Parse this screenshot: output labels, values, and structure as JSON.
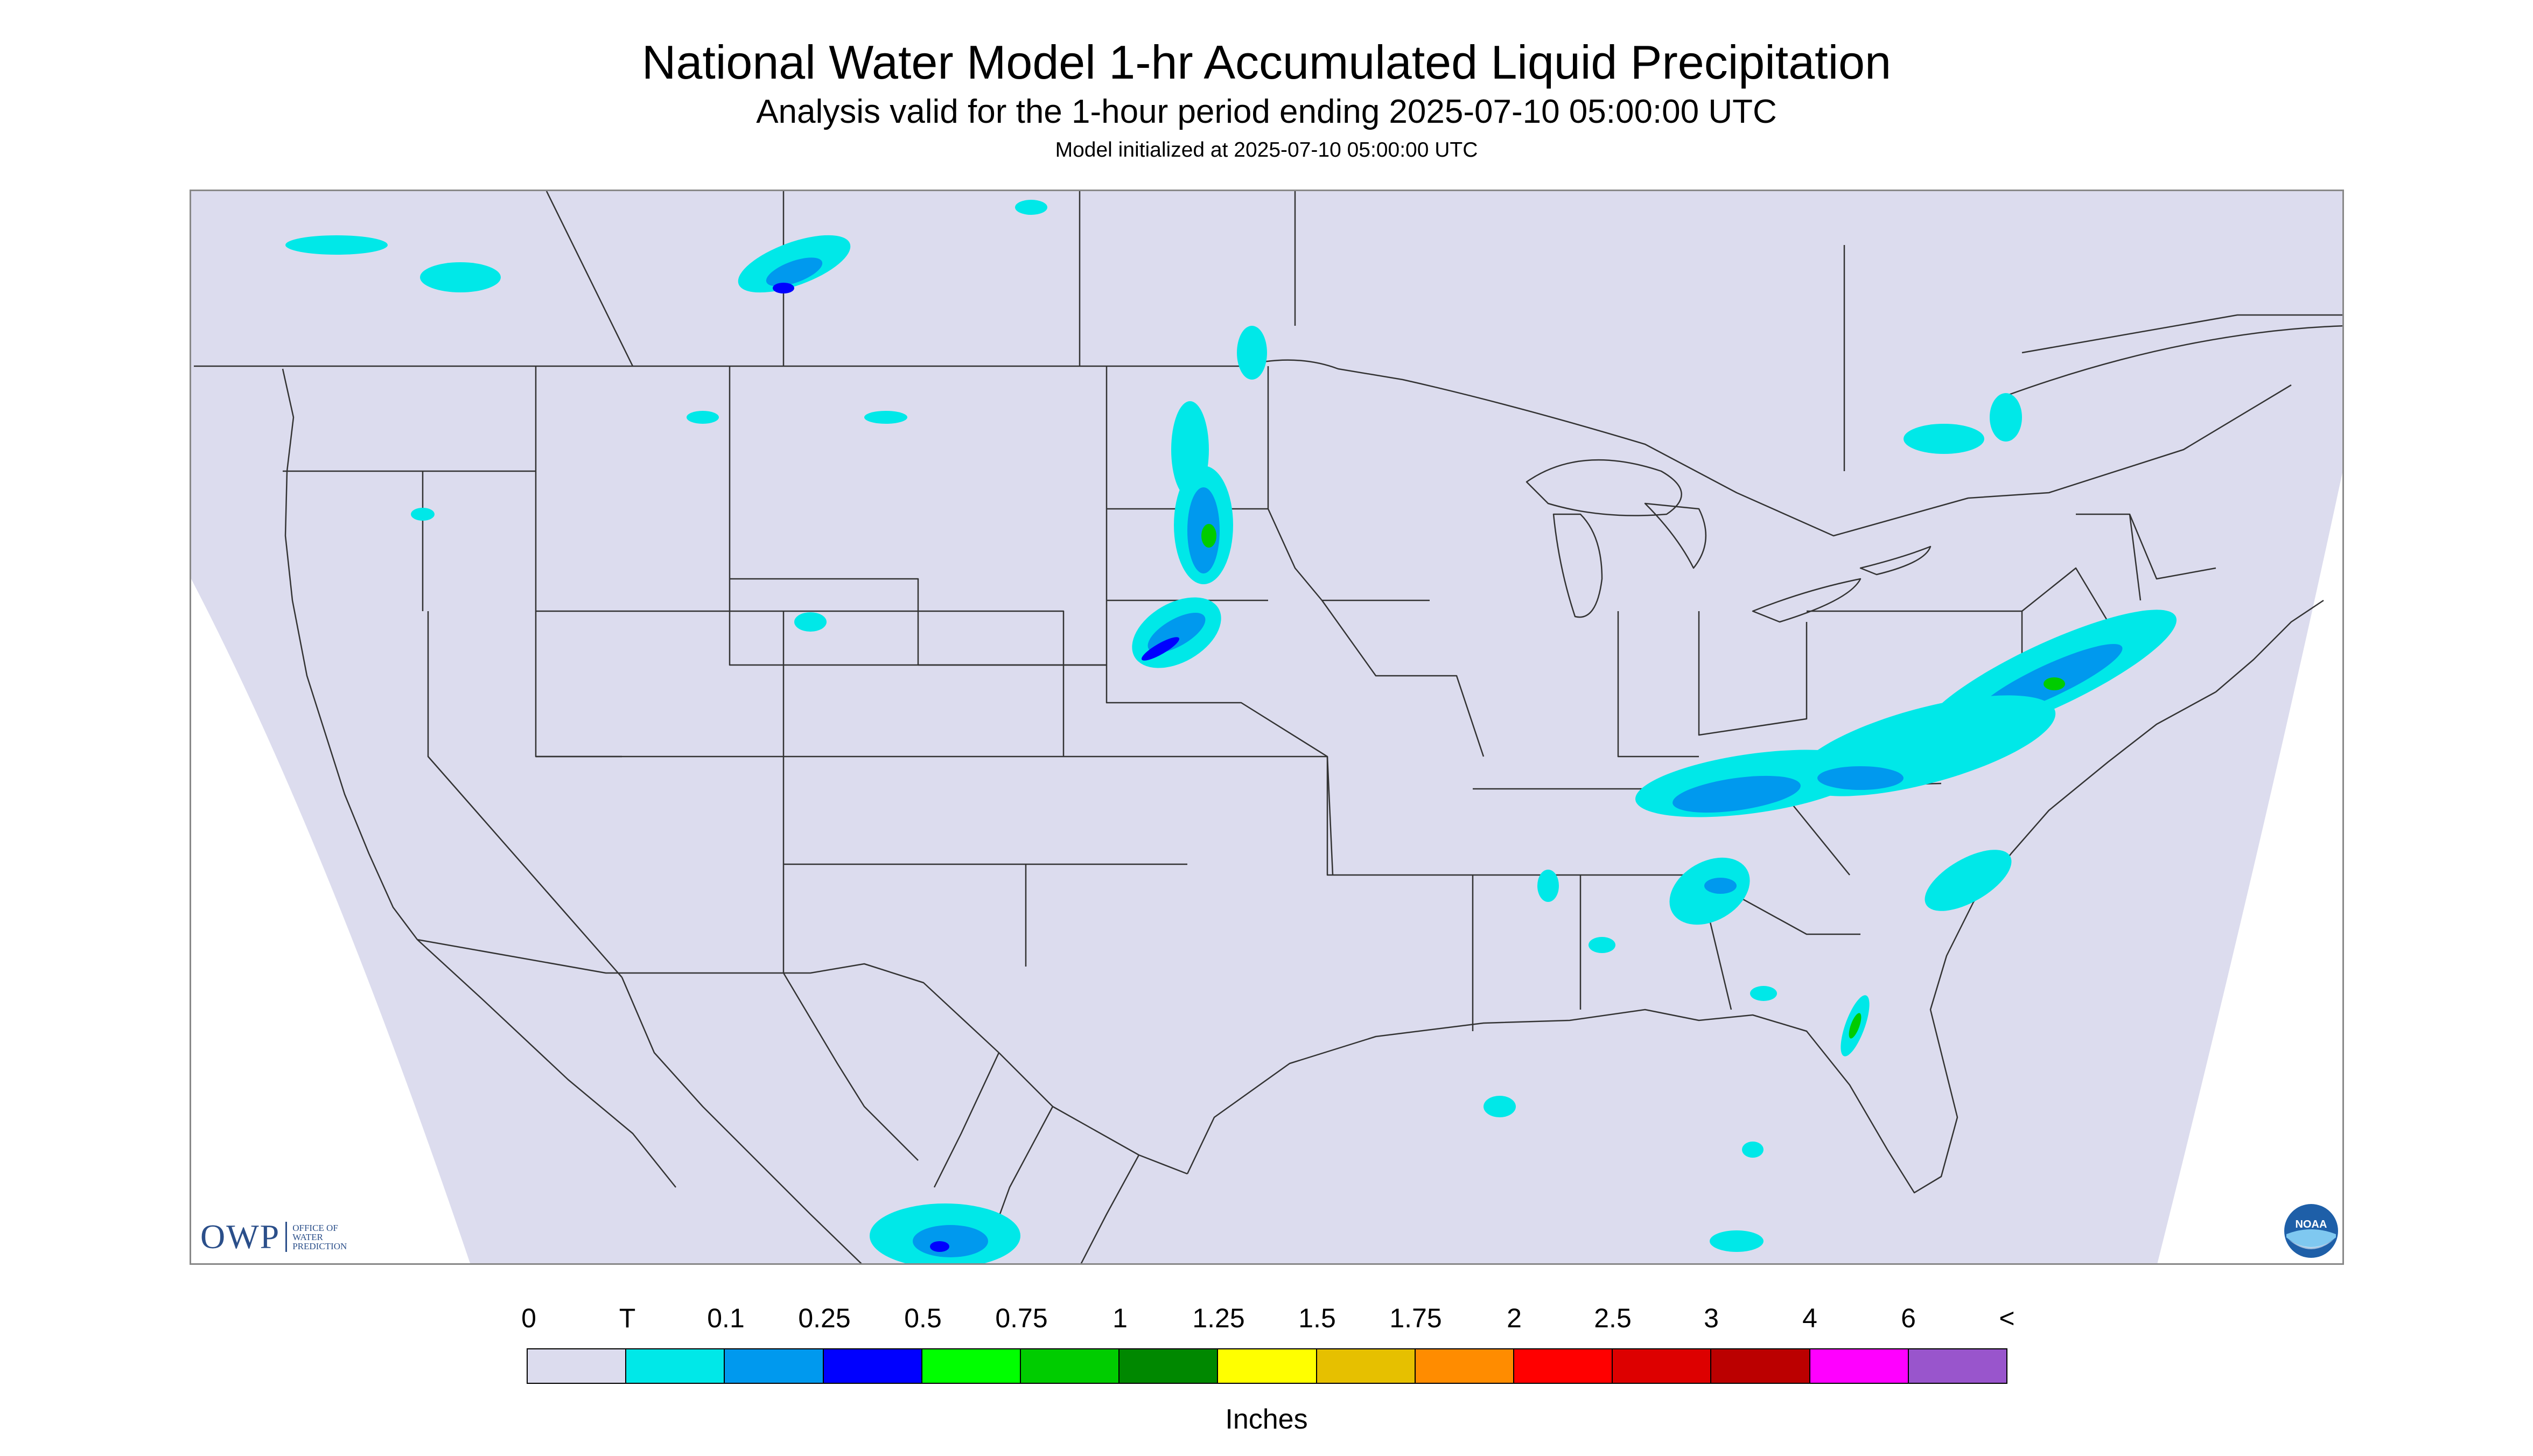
{
  "header": {
    "title": "National Water Model 1-hr Accumulated Liquid Precipitation",
    "subtitle": "Analysis valid for the 1-hour period ending 2025-07-10 05:00:00 UTC",
    "init": "Model initialized at 2025-07-10 05:00:00 UTC"
  },
  "map": {
    "background": "#dcdcee",
    "outside": "#ffffff",
    "border_color": "#333333",
    "precip_colors": {
      "trace": "#00e8e8",
      "light": "#0099ee",
      "moderate": "#0000ff",
      "heavy": "#00cc00"
    }
  },
  "logos": {
    "owp_mark": "OWP",
    "owp_text": "OFFICE OF\nWATER\nPREDICTION",
    "noaa_text": "NOAA"
  },
  "legend": {
    "ticks": [
      "0",
      "T",
      "0.1",
      "0.25",
      "0.5",
      "0.75",
      "1",
      "1.25",
      "1.5",
      "1.75",
      "2",
      "2.5",
      "3",
      "4",
      "6",
      "<"
    ],
    "colors": [
      "#dcdcee",
      "#00e8e8",
      "#0099ee",
      "#0000ff",
      "#00ff00",
      "#00cc00",
      "#008800",
      "#ffff00",
      "#e6c000",
      "#ff8c00",
      "#ff0000",
      "#dd0000",
      "#bb0000",
      "#ff00ff",
      "#9955cc"
    ],
    "units": "Inches"
  }
}
